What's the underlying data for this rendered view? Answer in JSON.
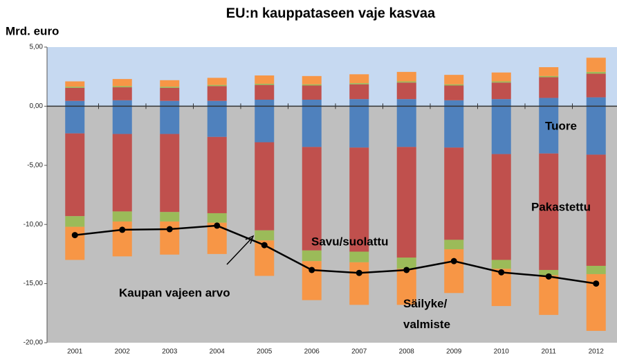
{
  "chart_data": {
    "type": "stacked_bar_line",
    "title": "EU:n kauppataseen vaje kasvaa",
    "y_label": "Mrd. euro",
    "categories": [
      "2001",
      "2002",
      "2003",
      "2004",
      "2005",
      "2006",
      "2007",
      "2008",
      "2009",
      "2010",
      "2011",
      "2012"
    ],
    "ylim": [
      -20,
      5
    ],
    "yticks": [
      {
        "value": 5,
        "label": "5,00"
      },
      {
        "value": 0,
        "label": "0,00"
      },
      {
        "value": -5,
        "label": "-5,00"
      },
      {
        "value": -10,
        "label": "-10,00"
      },
      {
        "value": -15,
        "label": "-15,00"
      },
      {
        "value": -20,
        "label": "-20,00"
      }
    ],
    "series": [
      {
        "name": "Tuore",
        "color": "#4f81bd",
        "exports": [
          0.45,
          0.5,
          0.45,
          0.45,
          0.55,
          0.55,
          0.6,
          0.6,
          0.5,
          0.6,
          0.7,
          0.75
        ],
        "imports": [
          -2.3,
          -2.35,
          -2.35,
          -2.6,
          -3.05,
          -3.45,
          -3.5,
          -3.45,
          -3.5,
          -4.05,
          -4.0,
          -4.1
        ]
      },
      {
        "name": "Pakastettu",
        "color": "#c0504d",
        "exports": [
          1.1,
          1.1,
          1.1,
          1.25,
          1.25,
          1.2,
          1.25,
          1.4,
          1.25,
          1.4,
          1.75,
          2.0
        ],
        "imports": [
          -7.0,
          -6.55,
          -6.6,
          -6.45,
          -7.45,
          -8.75,
          -8.8,
          -9.35,
          -7.8,
          -8.95,
          -9.85,
          -9.4
        ]
      },
      {
        "name": "Savu/suolattu",
        "color": "#9bbb59",
        "exports": [
          0.1,
          0.1,
          0.1,
          0.1,
          0.1,
          0.1,
          0.1,
          0.1,
          0.1,
          0.1,
          0.1,
          0.15
        ],
        "imports": [
          -0.9,
          -0.85,
          -0.8,
          -0.8,
          -0.85,
          -0.9,
          -0.9,
          -0.95,
          -0.8,
          -0.75,
          -0.45,
          -0.7
        ]
      },
      {
        "name": "Säilyke/\nvalmiste",
        "color": "#f79646",
        "exports": [
          0.45,
          0.6,
          0.55,
          0.6,
          0.7,
          0.7,
          0.75,
          0.8,
          0.8,
          0.75,
          0.75,
          1.2
        ],
        "imports": [
          -2.8,
          -2.95,
          -2.8,
          -2.65,
          -3.0,
          -3.3,
          -3.6,
          -3.05,
          -3.7,
          -3.15,
          -3.35,
          -4.8
        ]
      }
    ],
    "balance": {
      "name": "Kaupan vajeen arvo",
      "color": "#000000",
      "values": [
        -10.9,
        -10.45,
        -10.4,
        -10.1,
        -11.75,
        -13.85,
        -14.1,
        -13.85,
        -13.1,
        -14.05,
        -14.4,
        -15.0
      ]
    }
  }
}
